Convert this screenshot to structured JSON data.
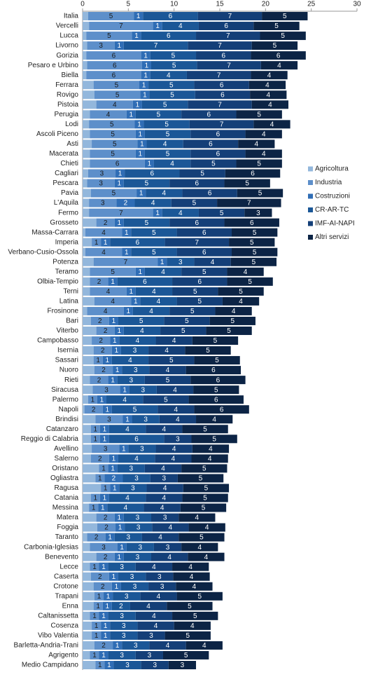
{
  "chart_data": {
    "type": "stacked_barh",
    "categories": [
      "Italia",
      "Vercelli",
      "Lucca",
      "Livorno",
      "Gorizia",
      "Pesaro e Urbino",
      "Biella",
      "Ferrara",
      "Rovigo",
      "Pistoia",
      "Perugia",
      "Lodi",
      "Ascoli Piceno",
      "Asti",
      "Macerata",
      "Chieti",
      "Cagliari",
      "Pescara",
      "Pavia",
      "L'Aquila",
      "Fermo",
      "Grosseto",
      "Massa-Carrara",
      "Imperia",
      "Verbano-Cusio-Ossola",
      "Potenza",
      "Teramo",
      "Olbia-Tempio",
      "Terni",
      "Latina",
      "Frosinone",
      "Bari",
      "Viterbo",
      "Campobasso",
      "Isernia",
      "Sassari",
      "Nuoro",
      "Rieti",
      "Siracusa",
      "Palermo",
      "Napoli",
      "Brindisi",
      "Catanzaro",
      "Reggio di Calabria",
      "Avellino",
      "Salerno",
      "Oristano",
      "Ogliastra",
      "Ragusa",
      "Catania",
      "Messina",
      "Matera",
      "Foggia",
      "Taranto",
      "Carbonia-Iglesias",
      "Benevento",
      "Lecce",
      "Caserta",
      "Crotone",
      "Trapani",
      "Enna",
      "Caltanissetta",
      "Cosenza",
      "Vibo Valentia",
      "Barletta-Andria-Trani",
      "Agrigento",
      "Medio Campidano"
    ],
    "series": [
      {
        "name": "Agricoltura",
        "color": "#93b7dc",
        "labels": false,
        "values": [
          0.6,
          0.7,
          0.4,
          0.5,
          0.4,
          0.5,
          0.4,
          1.2,
          1.3,
          1.5,
          0.8,
          0.7,
          0.8,
          1.0,
          0.8,
          0.8,
          0.6,
          0.5,
          0.9,
          0.7,
          0.7,
          1.5,
          0.3,
          1.0,
          0.3,
          1.2,
          0.8,
          0.8,
          0.8,
          1.3,
          0.5,
          0.9,
          1.5,
          1.0,
          1.2,
          1.2,
          1.3,
          0.8,
          1.1,
          0.6,
          0.2,
          1.4,
          0.9,
          0.9,
          1.0,
          0.9,
          1.8,
          1.4,
          2.0,
          0.9,
          0.7,
          1.5,
          1.6,
          0.5,
          0.8,
          1.5,
          0.8,
          0.9,
          1.2,
          1.3,
          1.2,
          0.8,
          1.0,
          1.0,
          1.3,
          0.8,
          1.4
        ]
      },
      {
        "name": "Industria",
        "color": "#5d8fca",
        "labels": true,
        "values": [
          5,
          7,
          5,
          3,
          6,
          6,
          6,
          5,
          5,
          4,
          4,
          5,
          5,
          5,
          5,
          6,
          3,
          3,
          5,
          3,
          7,
          2,
          4,
          1,
          4,
          7,
          5,
          2,
          4,
          4,
          4,
          2,
          2,
          2,
          2,
          1,
          2,
          2,
          3,
          1,
          2,
          3,
          1,
          1,
          3,
          2,
          1,
          1,
          1,
          1,
          1,
          2,
          2,
          2,
          3,
          2,
          1,
          2,
          2,
          1,
          1,
          1,
          1,
          1,
          2,
          1,
          1
        ]
      },
      {
        "name": "Costruzioni",
        "color": "#2f6db5",
        "labels": true,
        "values": [
          1,
          1,
          1,
          1,
          1,
          1,
          1,
          1,
          1,
          1,
          1,
          1,
          1,
          1,
          1,
          1,
          1,
          1,
          1,
          2,
          1,
          1,
          1,
          1,
          1,
          1,
          1,
          1,
          1,
          1,
          1,
          1,
          1,
          1,
          1,
          1,
          1,
          1,
          1,
          1,
          1,
          1,
          1,
          1,
          1,
          1,
          1,
          2,
          1,
          1,
          1,
          1,
          1,
          1,
          1,
          1,
          1,
          1,
          1,
          1,
          1,
          1,
          1,
          1,
          1,
          1,
          1
        ]
      },
      {
        "name": "CR-AR-TC",
        "color": "#1b5797",
        "labels": true,
        "values": [
          6,
          4,
          6,
          7,
          5,
          5,
          4,
          5,
          5,
          5,
          5,
          5,
          5,
          4,
          5,
          4,
          6,
          5,
          4,
          4,
          4,
          5,
          5,
          6,
          5,
          3,
          4,
          6,
          4,
          4,
          4,
          5,
          4,
          4,
          3,
          4,
          3,
          3,
          3,
          4,
          5,
          3,
          4,
          6,
          3,
          4,
          3,
          3,
          3,
          4,
          4,
          3,
          3,
          3,
          3,
          3,
          3,
          3,
          3,
          3,
          2,
          3,
          3,
          3,
          3,
          3,
          3
        ]
      },
      {
        "name": "IMF-AI-NAPI",
        "color": "#143f78",
        "labels": true,
        "values": [
          7,
          6,
          7,
          7,
          6,
          7,
          7,
          6,
          6,
          7,
          6,
          7,
          6,
          6,
          6,
          5,
          5,
          6,
          6,
          5,
          5,
          6,
          6,
          7,
          6,
          4,
          5,
          6,
          5,
          5,
          5,
          5,
          5,
          4,
          4,
          5,
          4,
          5,
          4,
          5,
          4,
          4,
          4,
          3,
          4,
          4,
          4,
          3,
          4,
          4,
          4,
          3,
          4,
          4,
          3,
          4,
          4,
          3,
          3,
          4,
          4,
          4,
          4,
          3,
          4,
          3,
          3
        ]
      },
      {
        "name": "Altri servizi",
        "color": "#0c2445",
        "labels": true,
        "values": [
          5,
          5,
          5,
          5,
          6,
          4,
          4,
          4,
          4,
          4,
          5,
          4,
          4,
          4,
          4,
          5,
          6,
          5,
          5,
          7,
          3,
          6,
          5,
          5,
          5,
          5,
          4,
          5,
          5,
          4,
          4,
          5,
          5,
          5,
          5,
          5,
          6,
          6,
          5,
          6,
          6,
          4,
          5,
          5,
          4,
          4,
          5,
          5,
          5,
          5,
          5,
          4,
          4,
          5,
          4,
          4,
          4,
          4,
          4,
          5,
          5,
          5,
          4,
          5,
          4,
          5,
          3
        ]
      }
    ],
    "xlim": [
      0,
      30
    ],
    "xticks": [
      0,
      5,
      10,
      15,
      20,
      25,
      30
    ],
    "legend": "right"
  }
}
